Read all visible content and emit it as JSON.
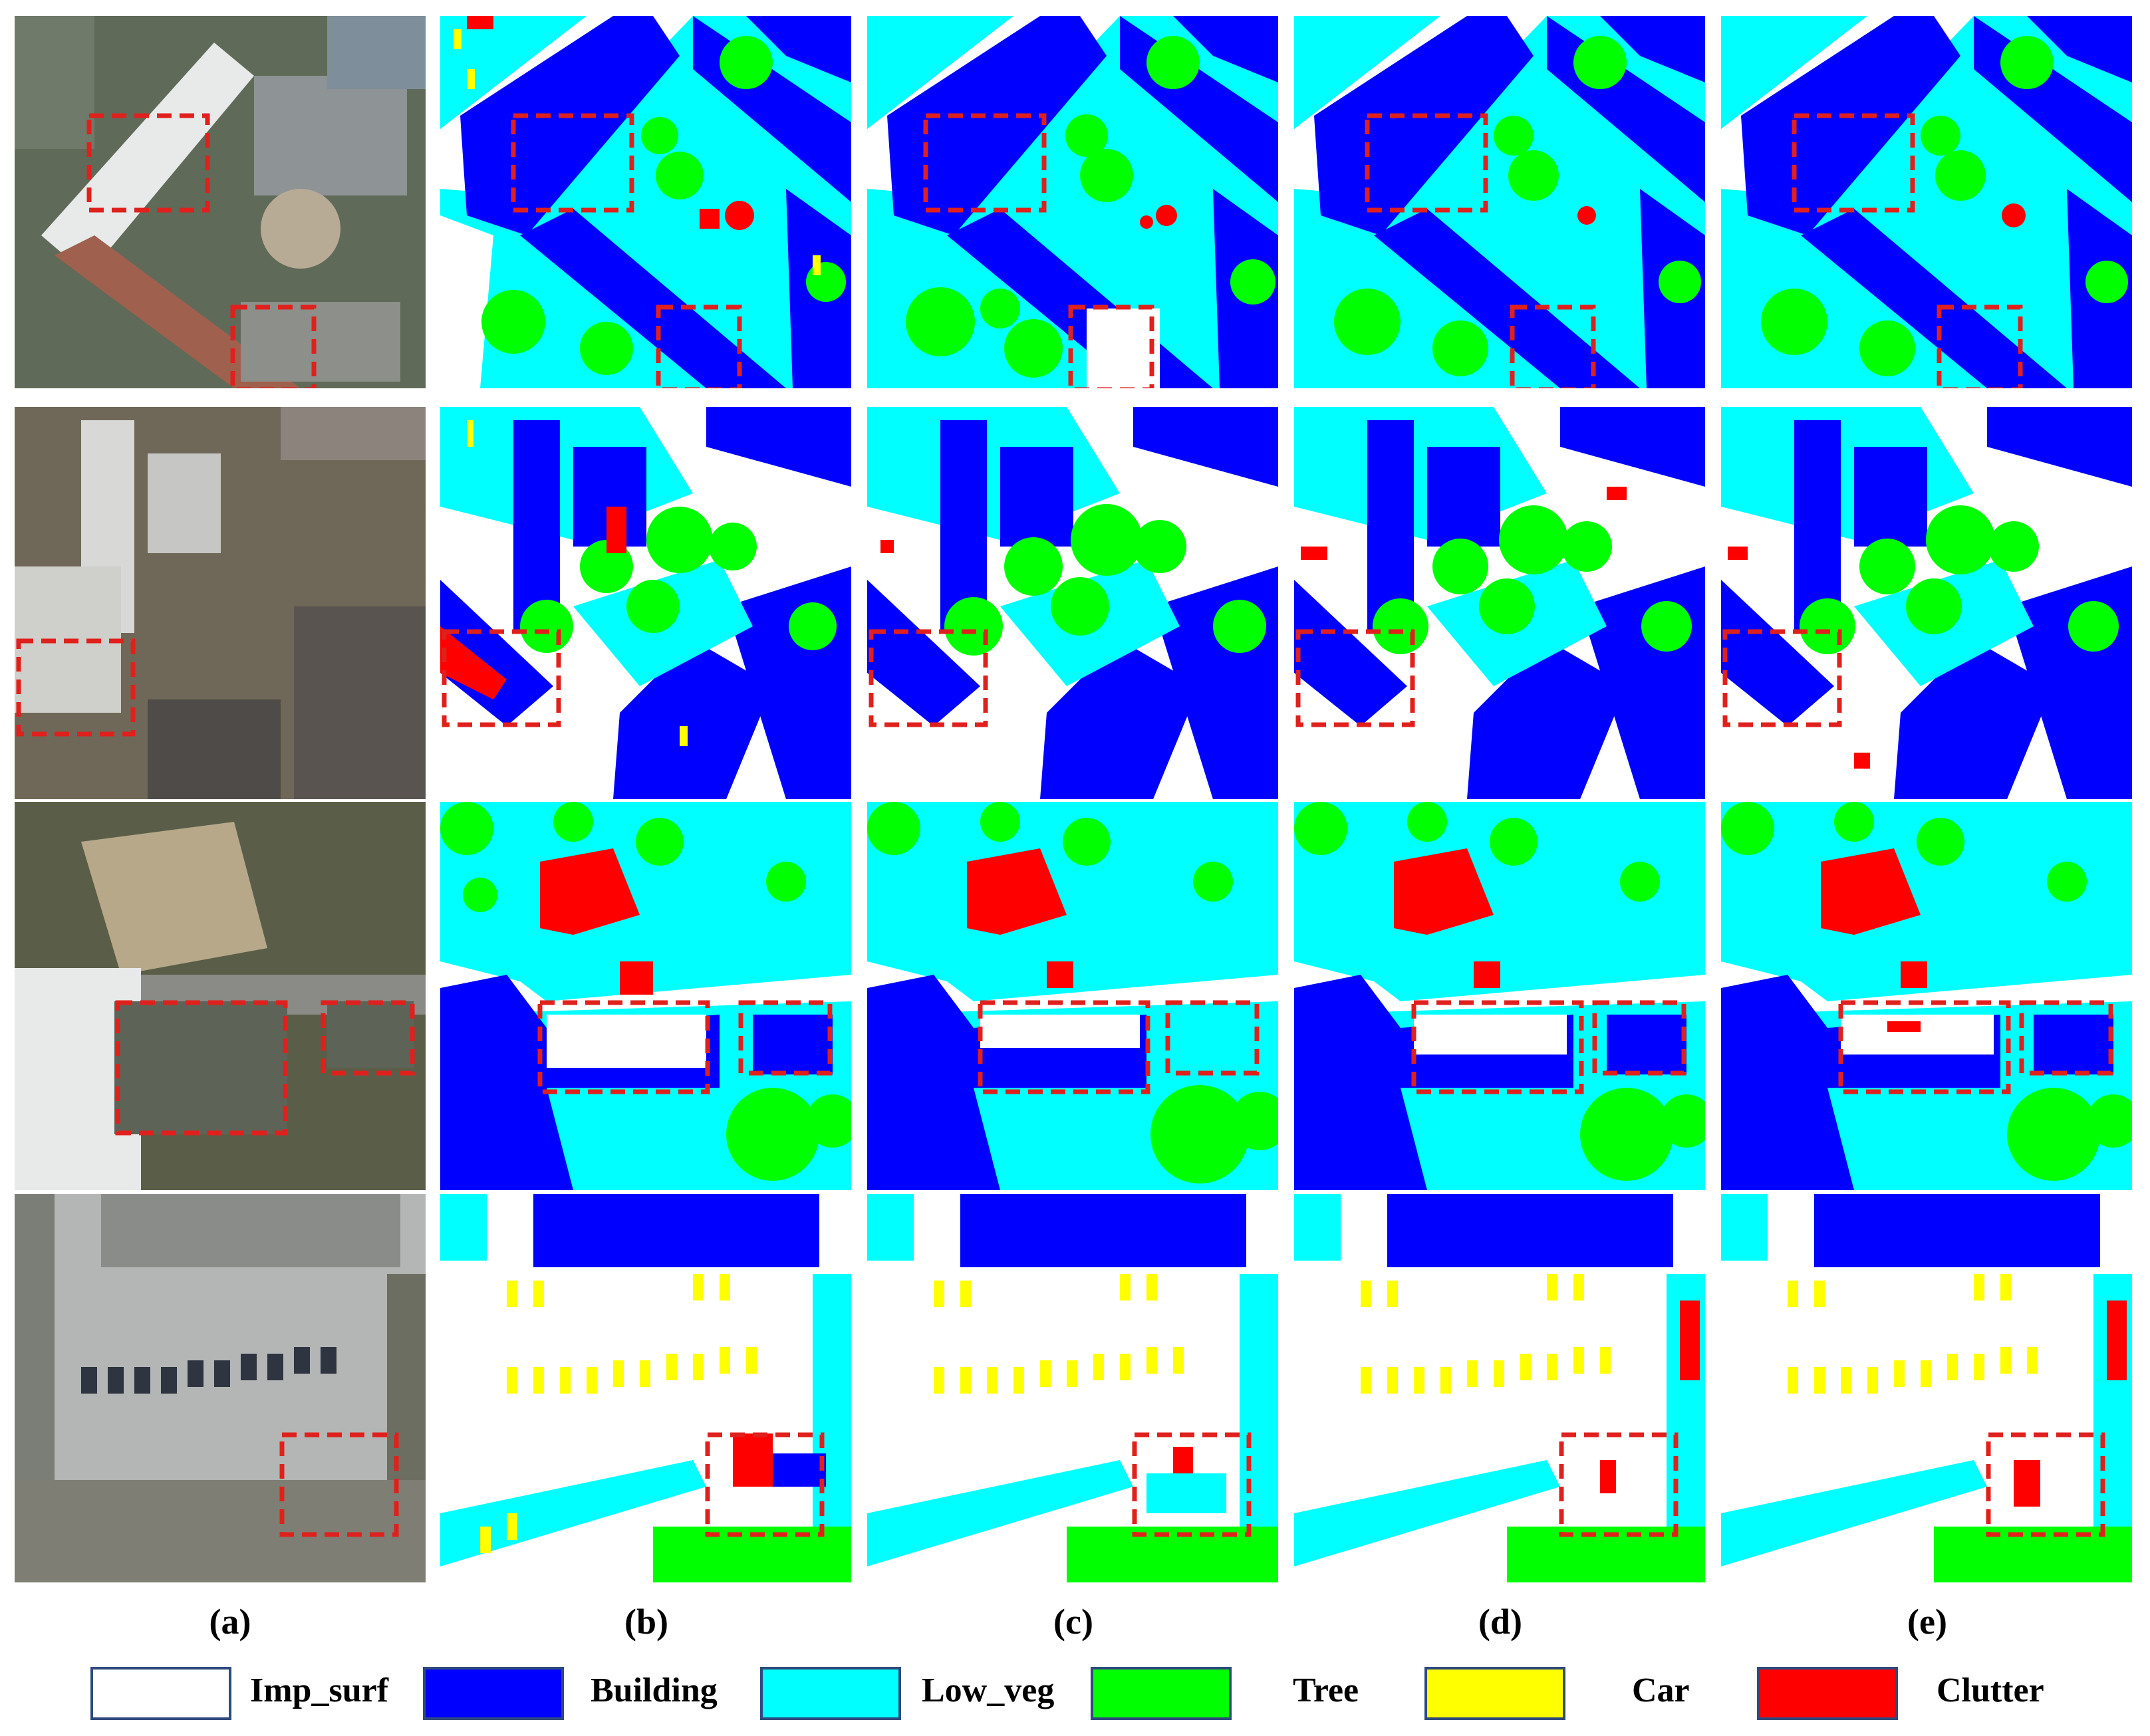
{
  "columns": [
    {
      "id": "a",
      "label": "(a)"
    },
    {
      "id": "b",
      "label": "(b)"
    },
    {
      "id": "c",
      "label": "(c)"
    },
    {
      "id": "d",
      "label": "(d)"
    },
    {
      "id": "e",
      "label": "(e)"
    }
  ],
  "legend": [
    {
      "label": "Imp_surf",
      "color": "#ffffff"
    },
    {
      "label": "Building",
      "color": "#0000ff"
    },
    {
      "label": "Low_veg",
      "color": "#00ffff"
    },
    {
      "label": "Tree",
      "color": "#00ff00"
    },
    {
      "label": "Car",
      "color": "#ffff00"
    },
    {
      "label": "Clutter",
      "color": "#ff0000"
    }
  ],
  "highlight_color": "#e0201c",
  "rows": 4
}
